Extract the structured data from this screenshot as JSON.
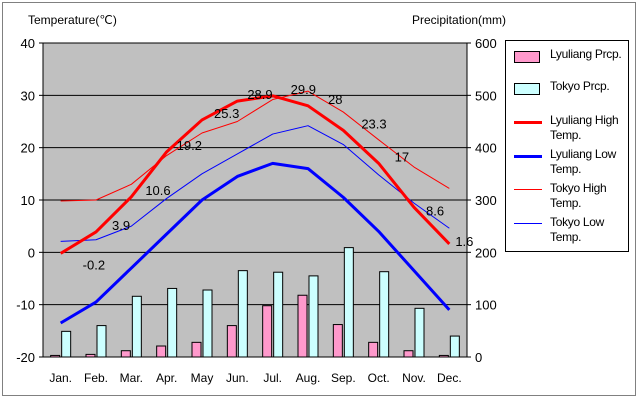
{
  "chart_data": {
    "type": "bar+line",
    "left_axis_title": "Temperature(℃)",
    "right_axis_title": "Precipitation(mm)",
    "categories": [
      "Jan.",
      "Feb.",
      "Mar.",
      "Apr.",
      "May",
      "Jun.",
      "Jul.",
      "Aug.",
      "Sep.",
      "Oct.",
      "Nov.",
      "Dec."
    ],
    "temp_ylim": [
      -20,
      40
    ],
    "temp_ticks": [
      "40",
      "30",
      "20",
      "10",
      "0",
      "-10",
      "-20"
    ],
    "prcp_ylim": [
      0,
      600
    ],
    "prcp_ticks": [
      "600",
      "500",
      "400",
      "300",
      "200",
      "100",
      "0"
    ],
    "grid": true,
    "legend_position": "right",
    "bar_series": [
      {
        "name": "Lyuliang Prcp.",
        "color": "#ff99cc",
        "values": [
          3,
          5,
          12,
          21,
          28,
          60,
          98,
          118,
          62,
          28,
          12,
          3
        ]
      },
      {
        "name": "Tokyo Prcp.",
        "color": "#ccffff",
        "values": [
          49,
          60,
          116,
          131,
          128,
          165,
          162,
          155,
          209,
          163,
          93,
          40
        ]
      }
    ],
    "line_series": [
      {
        "name": "Lyuliang High Temp.",
        "color": "#ff0000",
        "width": "thick",
        "values": [
          -0.2,
          3.9,
          10.6,
          19.2,
          25.3,
          28.9,
          29.9,
          28,
          23.3,
          17,
          8.6,
          1.6
        ],
        "labels": [
          "-0.2",
          "3.9",
          "10.6",
          "19.2",
          "25.3",
          "28.9",
          "29.9",
          "28",
          "23.3",
          "17",
          "8.6",
          "1.6"
        ]
      },
      {
        "name": "Lyuliang Low Temp.",
        "color": "#0000ff",
        "width": "thick",
        "values": [
          -13.5,
          -9.5,
          -3,
          3.5,
          10,
          14.5,
          17,
          16,
          10.5,
          4,
          -3.5,
          -11
        ]
      },
      {
        "name": "Tokyo High Temp.",
        "color": "#ff0000",
        "width": "thin",
        "values": [
          9.8,
          10,
          13,
          18.5,
          22.8,
          25,
          29.2,
          30.8,
          26.8,
          21.5,
          16.3,
          12.2
        ]
      },
      {
        "name": "Tokyo Low Temp.",
        "color": "#0000ff",
        "width": "thin",
        "values": [
          2.1,
          2.4,
          5,
          10.3,
          15,
          18.8,
          22.6,
          24.2,
          20.6,
          14.8,
          9.4,
          4.6
        ]
      }
    ]
  }
}
